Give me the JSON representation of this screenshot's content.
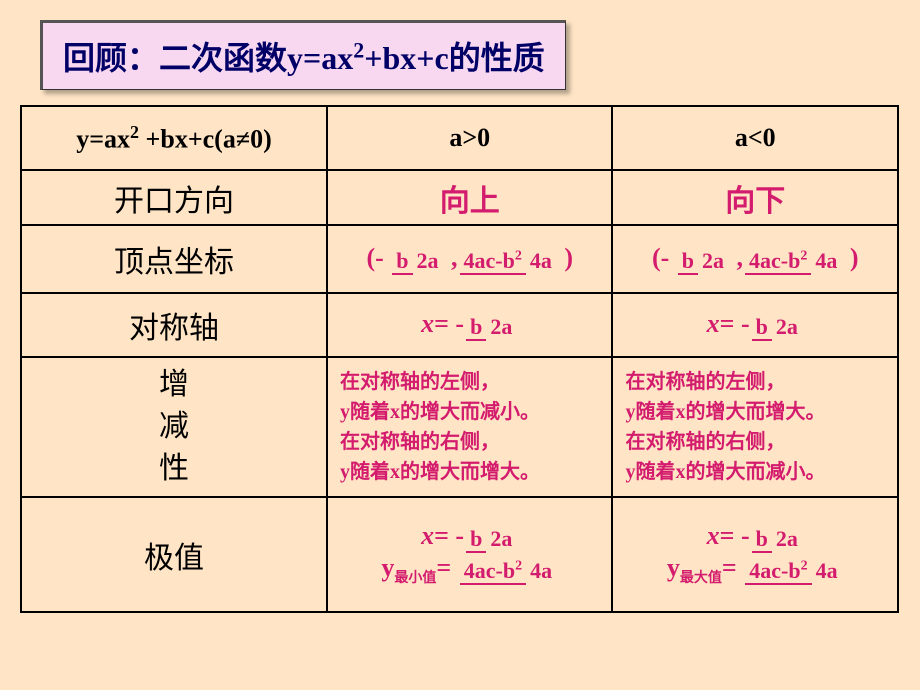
{
  "title_prefix": "回顾：二次函数y=ax",
  "title_exp": "2",
  "title_suffix": "+bx+c的性质",
  "header_col1_a": "y=ax",
  "header_col1_exp": "2",
  "header_col1_b": " +bx+c(a≠0)",
  "header_col2": "a>0",
  "header_col3": "a<0",
  "row1_label": "开口方向",
  "row1_v1": "向上",
  "row1_v2": "向下",
  "row2_label": "顶点坐标",
  "row3_label": "对称轴",
  "row4_l1": "增",
  "row4_l2": "减",
  "row4_l3": "性",
  "row4_v1": "在对称轴的左侧，<br>y随着x的增大而减小。<br>在对称轴的右侧，<br>y随着x的增大而增大。",
  "row4_v2": "在对称轴的左侧，<br>y随着x的增大而增大。<br>在对称轴的右侧，<br>y随着x的增大而减小。",
  "row5_label": "极值",
  "b": "b",
  "two_a": "2a",
  "four_ac_b2": "4ac-b",
  "four_a": "4a",
  "x_eq": "x",
  "eq_neg": "= -",
  "y_min": "最小值",
  "y_max": "最大值",
  "colors": {
    "background": "#ffe5c5",
    "title_bg": "#f7d8f0",
    "title_text": "#000066",
    "value_text": "#d41c6e",
    "border": "#000000"
  },
  "fonts": {
    "title": 32,
    "header": 26,
    "label": 30,
    "value": 30,
    "formula": 26,
    "desc": 20
  }
}
